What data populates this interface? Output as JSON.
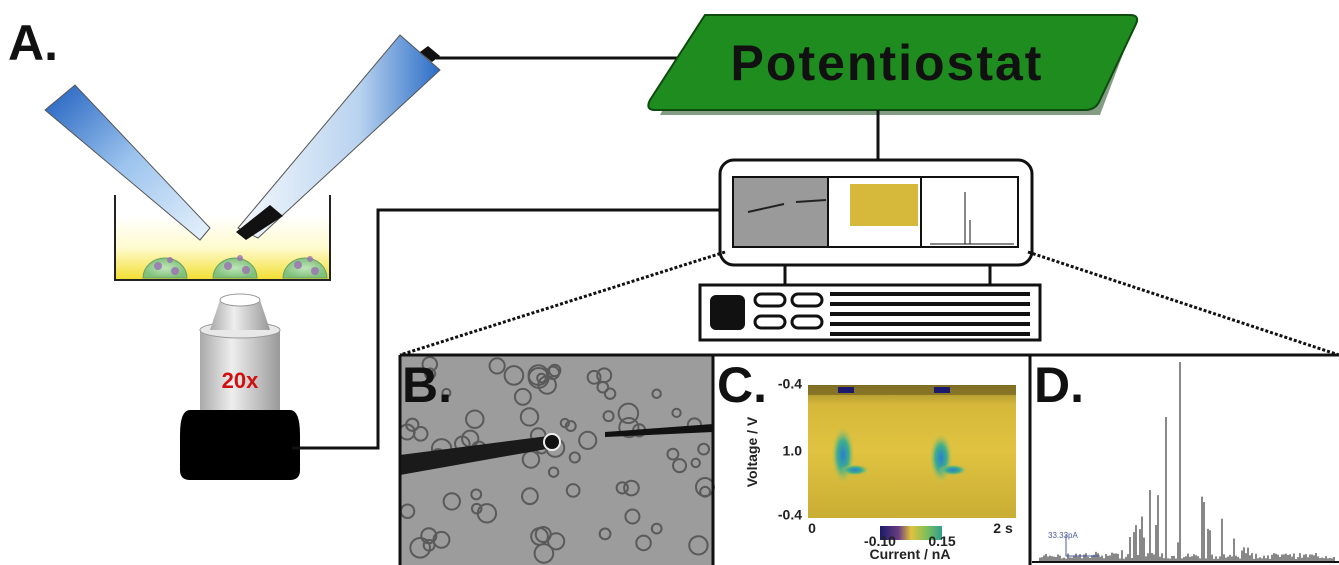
{
  "panel_a": {
    "label": "A.",
    "potentiostat": "Potentiostat",
    "objective": "20x"
  },
  "panel_b": {
    "label": "B."
  },
  "panel_c": {
    "label": "C.",
    "y_axis_title": "Voltage / V",
    "y_ticks": [
      "-0.4",
      "1.0",
      "-0.4"
    ],
    "x_ticks": [
      "0",
      "2 s"
    ],
    "colorbar_ticks": [
      "-0.10",
      "0.15"
    ],
    "colorbar_title": "Current / nA"
  },
  "panel_d": {
    "label": "D.",
    "scale_label": "33.33pA"
  }
}
